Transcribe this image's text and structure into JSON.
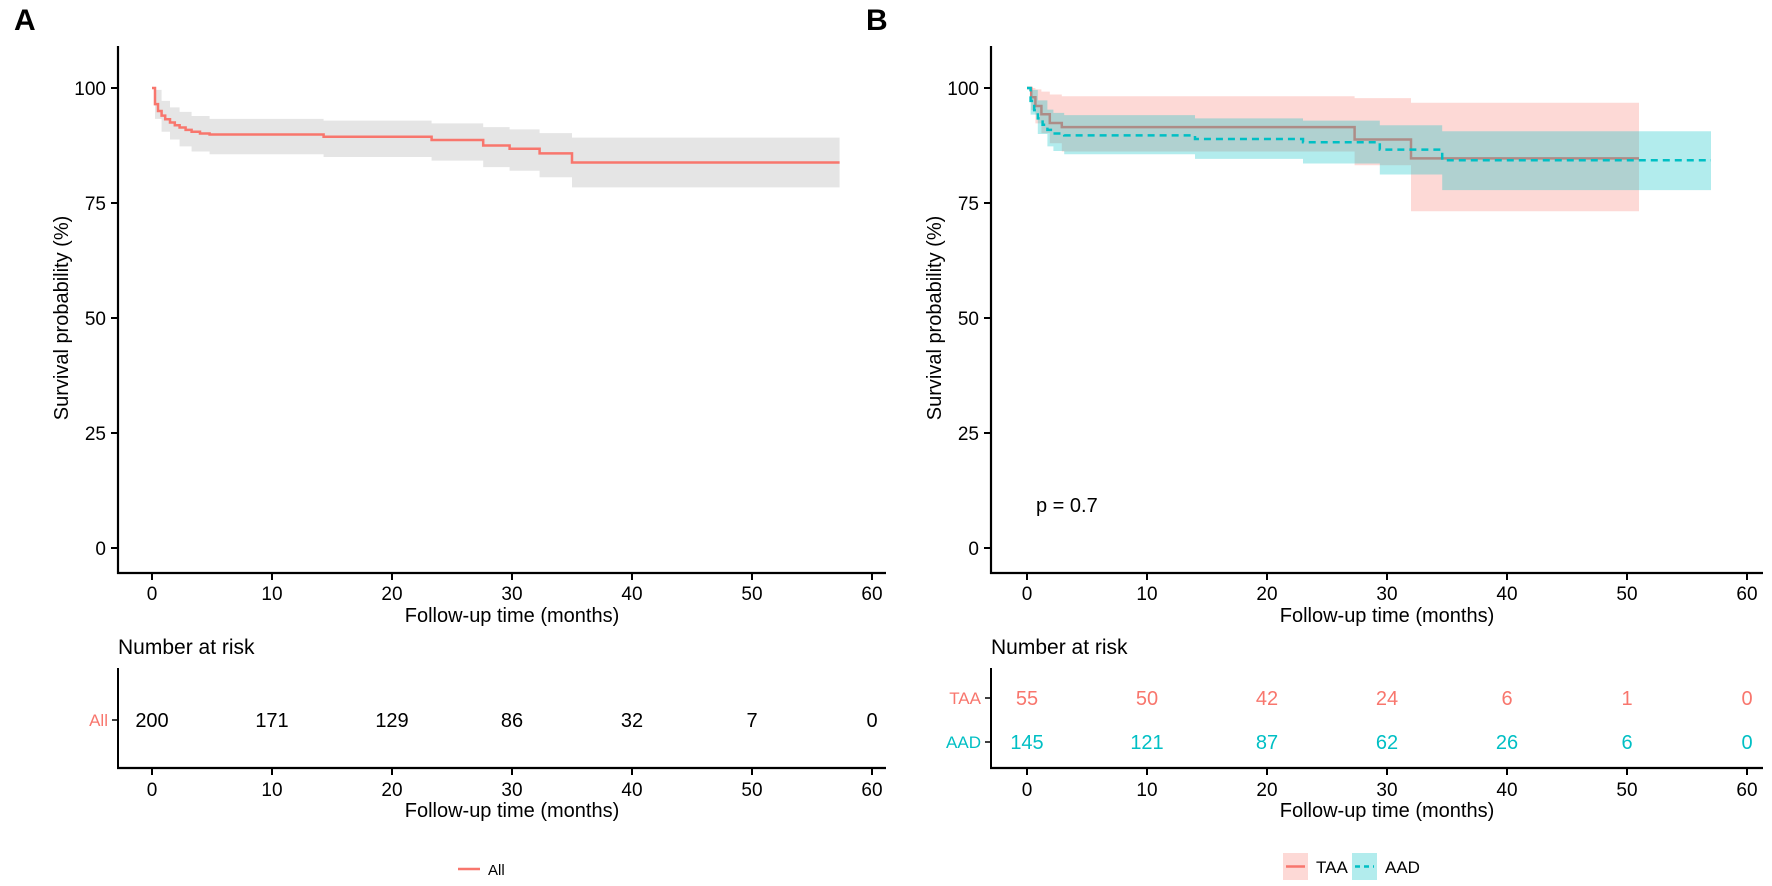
{
  "figure": {
    "background": "#ffffff",
    "colors": {
      "red": "#F8766D",
      "teal": "#00BFC4",
      "axis": "#000000",
      "gray_band": "rgba(127,127,127,0.20)",
      "pink_band": "rgba(248,118,109,0.28)",
      "cyan_band": "rgba(0,191,196,0.30)"
    }
  },
  "panels": [
    {
      "label": "A",
      "y_axis": {
        "title": "Survival probability (%)",
        "ticks": [
          0,
          25,
          50,
          75,
          100
        ]
      },
      "x_axis": {
        "title": "Follow-up time (months)",
        "ticks": [
          0,
          10,
          20,
          30,
          40,
          50,
          60
        ]
      },
      "p_value": null,
      "risk_table": {
        "title": "Number at risk",
        "x_axis_title": "Follow-up time (months)",
        "x_ticks": [
          0,
          10,
          20,
          30,
          40,
          50,
          60
        ],
        "rows": [
          {
            "name": "All",
            "label_color": "#F8766D",
            "number_color": "#000000",
            "counts": [
              200,
              171,
              129,
              86,
              32,
              7,
              0
            ]
          }
        ]
      },
      "legend": [
        {
          "label": "All",
          "color": "#F8766D",
          "dash": "solid",
          "swatch": null
        }
      ],
      "chart_data": {
        "type": "line",
        "subtype": "kaplan-meier-step",
        "title": "",
        "xlabel": "Follow-up time (months)",
        "ylabel": "Survival probability (%)",
        "xlim": [
          0,
          60
        ],
        "ylim": [
          0,
          100
        ],
        "grid": false,
        "legend_position": "bottom",
        "series": [
          {
            "name": "All",
            "color": "#F8766D",
            "dash": "solid",
            "end_x": 57.3,
            "steps": [
              [
                0,
                100
              ],
              [
                0.25,
                96.5
              ],
              [
                0.5,
                95
              ],
              [
                0.8,
                94
              ],
              [
                1.1,
                93.2
              ],
              [
                1.5,
                92.5
              ],
              [
                1.9,
                91.9
              ],
              [
                2.3,
                91.4
              ],
              [
                2.8,
                90.9
              ],
              [
                3.3,
                90.5
              ],
              [
                4,
                90.1
              ],
              [
                4.8,
                89.9
              ],
              [
                14.3,
                89.4
              ],
              [
                23.3,
                88.7
              ],
              [
                27.6,
                87.5
              ],
              [
                29.8,
                86.8
              ],
              [
                32.3,
                85.8
              ],
              [
                35,
                83.8
              ]
            ],
            "ci_band": {
              "color": "rgba(127,127,127,0.20)",
              "points": [
                [
                  0.25,
                  99.6,
                  93.3
                ],
                [
                  0.8,
                  97.2,
                  90.5
                ],
                [
                  1.5,
                  95.8,
                  88.8
                ],
                [
                  2.3,
                  94.8,
                  87.3
                ],
                [
                  3.3,
                  93.9,
                  86.2
                ],
                [
                  4.8,
                  93.3,
                  85.6
                ],
                [
                  14.3,
                  92.9,
                  85.0
                ],
                [
                  23.3,
                  92.3,
                  84.2
                ],
                [
                  27.6,
                  91.5,
                  82.8
                ],
                [
                  29.8,
                  91.0,
                  82.0
                ],
                [
                  32.3,
                  90.2,
                  80.6
                ],
                [
                  35,
                  89.2,
                  78.4
                ]
              ]
            }
          }
        ]
      }
    },
    {
      "label": "B",
      "y_axis": {
        "title": "Survival probability (%)",
        "ticks": [
          0,
          25,
          50,
          75,
          100
        ]
      },
      "x_axis": {
        "title": "Follow-up time (months)",
        "ticks": [
          0,
          10,
          20,
          30,
          40,
          50,
          60
        ]
      },
      "p_value": "p = 0.7",
      "risk_table": {
        "title": "Number at risk",
        "x_axis_title": "Follow-up time (months)",
        "x_ticks": [
          0,
          10,
          20,
          30,
          40,
          50,
          60
        ],
        "rows": [
          {
            "name": "TAA",
            "label_color": "#F8766D",
            "number_color": "#F8766D",
            "counts": [
              55,
              50,
              42,
              24,
              6,
              1,
              0
            ]
          },
          {
            "name": "AAD",
            "label_color": "#00BFC4",
            "number_color": "#00BFC4",
            "counts": [
              145,
              121,
              87,
              62,
              26,
              6,
              0
            ]
          }
        ]
      },
      "legend": [
        {
          "label": "TAA",
          "color": "#F8766D",
          "dash": "solid",
          "swatch": "rgba(248,118,109,0.28)"
        },
        {
          "label": "AAD",
          "color": "#00BFC4",
          "dash": "dashed",
          "swatch": "rgba(0,191,196,0.30)"
        }
      ],
      "chart_data": {
        "type": "line",
        "subtype": "kaplan-meier-step",
        "title": "",
        "xlabel": "Follow-up time (months)",
        "ylabel": "Survival probability (%)",
        "xlim": [
          0,
          60
        ],
        "ylim": [
          0,
          100
        ],
        "grid": false,
        "legend_position": "bottom",
        "annotation": "p = 0.7",
        "series": [
          {
            "name": "TAA",
            "color": "#F8766D",
            "dash": "solid",
            "end_x": 51,
            "steps": [
              [
                0,
                100
              ],
              [
                0.35,
                98
              ],
              [
                0.7,
                96.1
              ],
              [
                1.2,
                94.3
              ],
              [
                1.9,
                92.4
              ],
              [
                2.9,
                91.5
              ],
              [
                27.3,
                88.8
              ],
              [
                32,
                84.7
              ]
            ],
            "ci_band": {
              "color": "rgba(248,118,109,0.28)",
              "points": [
                [
                  0.35,
                  100,
                  95.2
                ],
                [
                  0.7,
                  99.7,
                  92.3
                ],
                [
                  1.2,
                  99.2,
                  90.2
                ],
                [
                  1.9,
                  98.6,
                  88.0
                ],
                [
                  2.9,
                  98.2,
                  86.2
                ],
                [
                  27.3,
                  97.8,
                  83.2
                ],
                [
                  32,
                  96.8,
                  73.2
                ]
              ]
            }
          },
          {
            "name": "AAD",
            "color": "#00BFC4",
            "dash": "dashed",
            "end_x": 57,
            "steps": [
              [
                0,
                100
              ],
              [
                0.3,
                97.2
              ],
              [
                0.6,
                95.2
              ],
              [
                0.9,
                93.4
              ],
              [
                1.3,
                92.0
              ],
              [
                1.7,
                90.9
              ],
              [
                2.2,
                90.1
              ],
              [
                3.1,
                89.7
              ],
              [
                14,
                88.9
              ],
              [
                23,
                88.2
              ],
              [
                29.4,
                86.6
              ],
              [
                34.6,
                84.3
              ]
            ],
            "ci_band": {
              "color": "rgba(0,191,196,0.30)",
              "points": [
                [
                  0.3,
                  99.6,
                  94.2
                ],
                [
                  0.9,
                  97.3,
                  90.0
                ],
                [
                  1.7,
                  95.3,
                  87.3
                ],
                [
                  2.2,
                  94.6,
                  86.3
                ],
                [
                  3.1,
                  94.1,
                  85.6
                ],
                [
                  14,
                  93.4,
                  84.6
                ],
                [
                  23,
                  92.9,
                  83.6
                ],
                [
                  29.4,
                  91.9,
                  81.2
                ],
                [
                  34.6,
                  90.6,
                  77.8
                ]
              ]
            }
          }
        ]
      }
    }
  ]
}
